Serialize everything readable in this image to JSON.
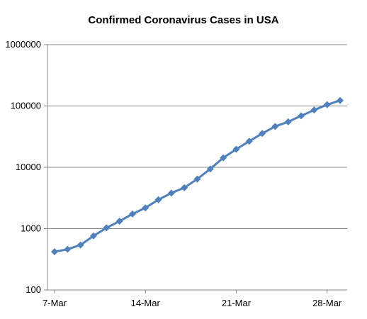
{
  "chart_data": {
    "type": "line",
    "title": "Confirmed Coronavirus Cases in USA",
    "xlabel": "",
    "ylabel": "",
    "y_scale": "log",
    "ylim": [
      100,
      1000000
    ],
    "y_ticks": [
      "100",
      "1000",
      "10000",
      "100000",
      "1000000"
    ],
    "x_tick_labels": [
      "7-Mar",
      "14-Mar",
      "21-Mar",
      "28-Mar"
    ],
    "x_dates": [
      "7-Mar",
      "8-Mar",
      "9-Mar",
      "10-Mar",
      "11-Mar",
      "12-Mar",
      "13-Mar",
      "14-Mar",
      "15-Mar",
      "16-Mar",
      "17-Mar",
      "18-Mar",
      "19-Mar",
      "20-Mar",
      "21-Mar",
      "22-Mar",
      "23-Mar",
      "24-Mar",
      "25-Mar",
      "26-Mar",
      "27-Mar",
      "28-Mar",
      "29-Mar"
    ],
    "grid": "horizontal",
    "legend": "none",
    "series": [
      {
        "color": "#4f81bd",
        "marker": "diamond",
        "values": [
          420,
          460,
          540,
          760,
          1030,
          1320,
          1730,
          2180,
          2960,
          3800,
          4650,
          6450,
          9400,
          14300,
          19700,
          26600,
          35600,
          46400,
          55200,
          69100,
          86000,
          105000,
          123000
        ]
      }
    ]
  }
}
